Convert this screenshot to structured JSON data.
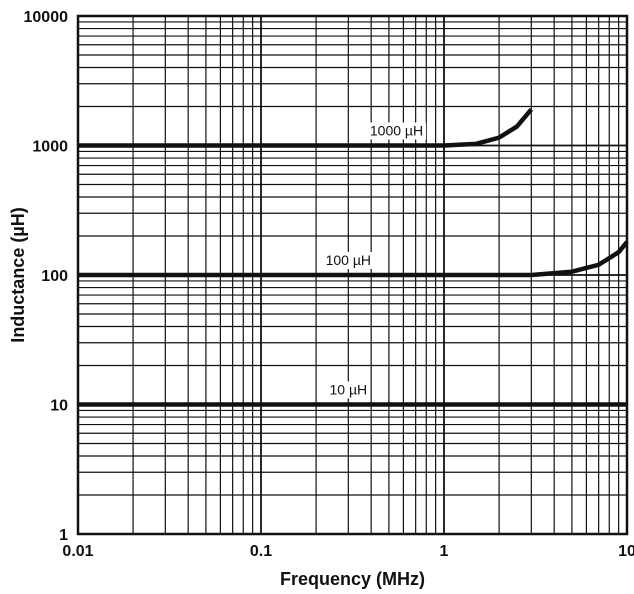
{
  "chart_data": {
    "type": "line",
    "xlabel": "Frequency (MHz)",
    "ylabel": "Inductance (µH)",
    "x_scale": "log",
    "y_scale": "log",
    "xlim": [
      0.01,
      10
    ],
    "ylim": [
      1,
      10000
    ],
    "grid": true,
    "x_ticks": [
      {
        "value": 0.01,
        "label": "0.01"
      },
      {
        "value": 0.1,
        "label": "0.1"
      },
      {
        "value": 1,
        "label": "1"
      },
      {
        "value": 10,
        "label": "10"
      }
    ],
    "y_ticks": [
      {
        "value": 1,
        "label": "1"
      },
      {
        "value": 10,
        "label": "10"
      },
      {
        "value": 100,
        "label": "100"
      },
      {
        "value": 1000,
        "label": "1000"
      },
      {
        "value": 10000,
        "label": "10000"
      }
    ],
    "series": [
      {
        "name": "1000 µH",
        "label_at": {
          "x": 0.55,
          "y": 1000
        },
        "points": [
          [
            0.01,
            1000
          ],
          [
            1,
            1000
          ],
          [
            1.5,
            1030
          ],
          [
            2,
            1150
          ],
          [
            2.5,
            1400
          ],
          [
            3,
            1900
          ]
        ]
      },
      {
        "name": "100 µH",
        "label_at": {
          "x": 0.3,
          "y": 100
        },
        "points": [
          [
            0.01,
            100
          ],
          [
            3,
            100
          ],
          [
            5,
            106
          ],
          [
            7,
            120
          ],
          [
            9,
            150
          ],
          [
            10,
            180
          ]
        ]
      },
      {
        "name": "10 µH",
        "label_at": {
          "x": 0.3,
          "y": 10
        },
        "points": [
          [
            0.01,
            10
          ],
          [
            10,
            10
          ]
        ]
      }
    ]
  }
}
